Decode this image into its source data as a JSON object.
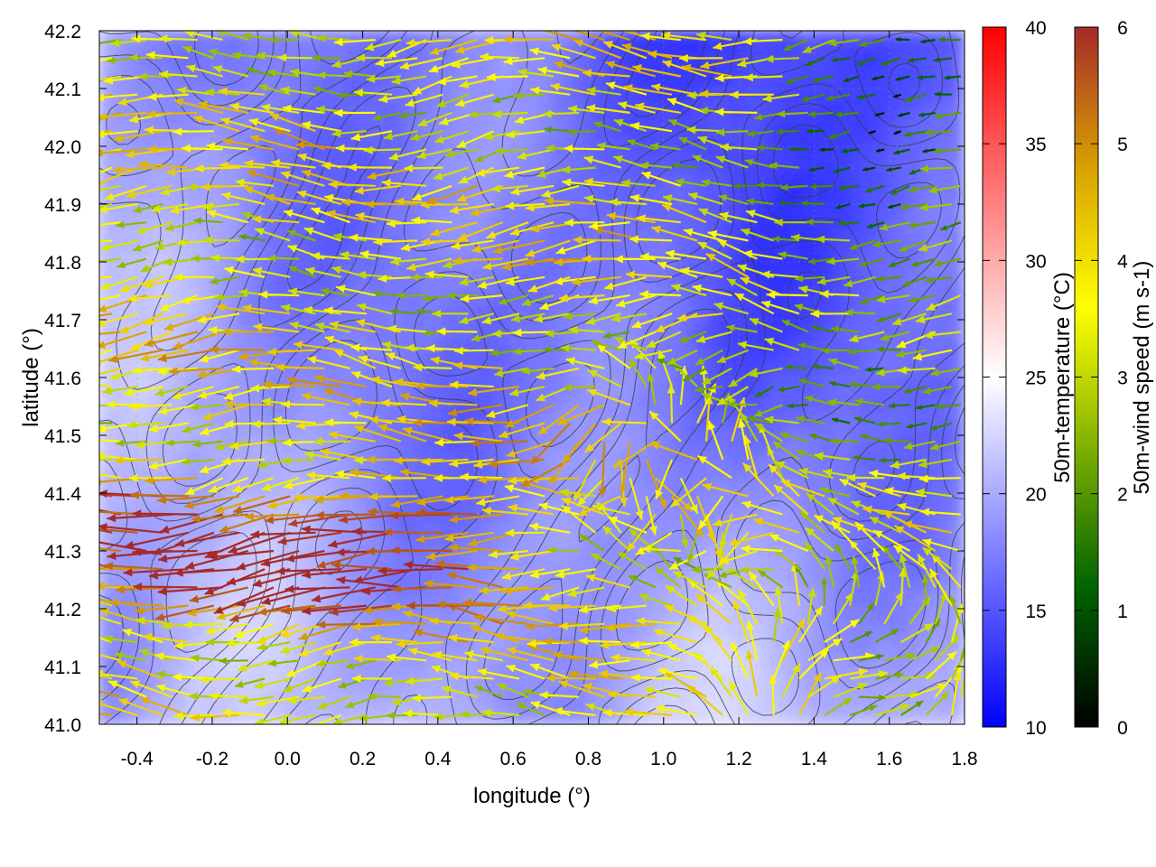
{
  "chart_data": {
    "type": "heatmap",
    "subtype": "vector field over temperature map with contours",
    "xlabel": "longitude (°)",
    "ylabel": "latitude (°)",
    "xlim": [
      -0.5,
      1.8
    ],
    "ylim": [
      41.0,
      42.2
    ],
    "x_ticks": [
      "-0.4",
      "-0.2",
      "0.0",
      "0.2",
      "0.4",
      "0.6",
      "0.8",
      "1.0",
      "1.2",
      "1.4",
      "1.6",
      "1.8"
    ],
    "y_ticks": [
      "41.0",
      "41.1",
      "41.2",
      "41.3",
      "41.4",
      "41.5",
      "41.6",
      "41.7",
      "41.8",
      "41.9",
      "42.0",
      "42.1",
      "42.2"
    ],
    "grid": true,
    "background_field": {
      "name": "50m-temperature",
      "label": "50m-temperature (°C)",
      "range": [
        10,
        40
      ],
      "ticks": [
        "10",
        "15",
        "20",
        "25",
        "30",
        "35",
        "40"
      ],
      "colors": [
        "#0000ff",
        "#ffffff",
        "#ff0000"
      ],
      "approx_values": {
        "north_east": 13,
        "center": 17,
        "south_west": 20,
        "south_east": 21
      }
    },
    "vector_field": {
      "name": "50m-wind speed",
      "label": "50m-wind speed (m s-1)",
      "range": [
        0,
        6
      ],
      "ticks": [
        "0",
        "1",
        "2",
        "3",
        "4",
        "5",
        "6"
      ],
      "colors": [
        "#000000",
        "#006400",
        "#80b000",
        "#ffff00",
        "#d8a000",
        "#a52a2a"
      ],
      "predominant_direction": "westward (toward decreasing longitude)",
      "regimes": [
        {
          "region": "south-west, lon -0.5 to 0.4, lat 41.2–41.4",
          "speed_ms": 6,
          "direction": "west"
        },
        {
          "region": "west, lon -0.5 to 0.9, lat 41.5–42.0",
          "speed_ms": 4.5,
          "direction": "west"
        },
        {
          "region": "south-east, lon 1.2 to 1.8, lat 41.0–41.25",
          "speed_ms": 3,
          "direction": "east"
        },
        {
          "region": "north-east, lon 1.4 to 1.8, lat 41.9–42.2",
          "speed_ms": 0.5,
          "direction": "variable"
        }
      ]
    }
  }
}
